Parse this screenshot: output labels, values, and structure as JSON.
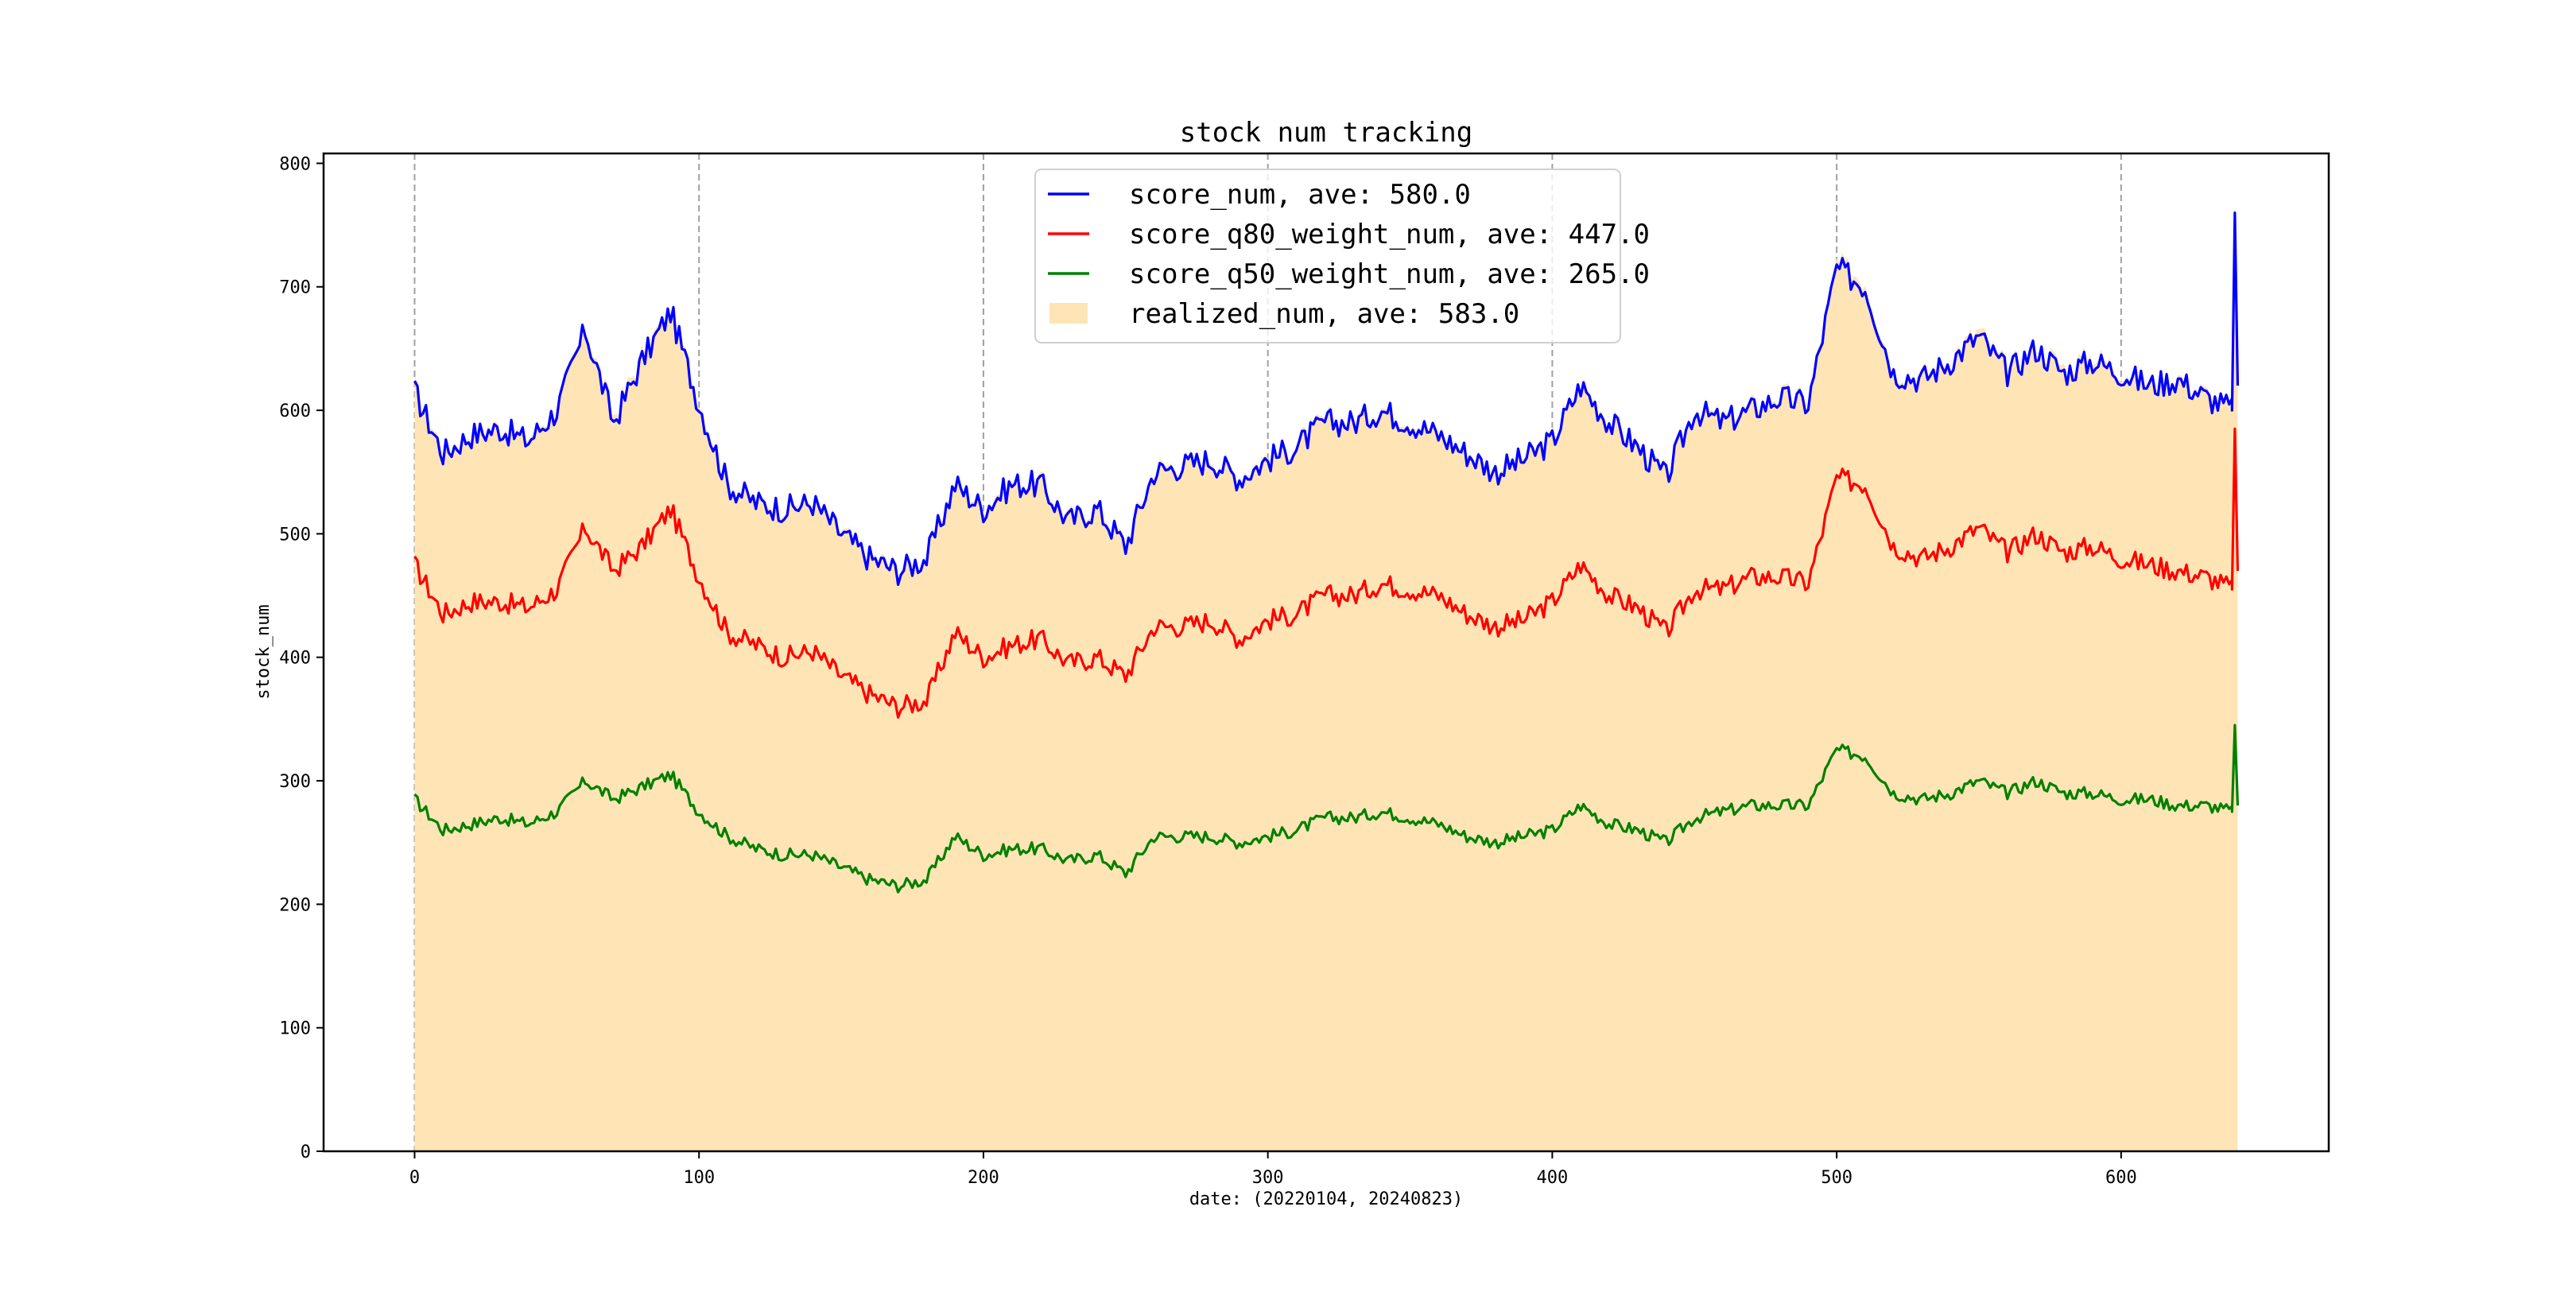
{
  "chart_data": {
    "type": "line",
    "title": "stock num tracking",
    "xlabel": "date: (20220104, 20240823)",
    "ylabel": "stock_num",
    "xlim": [
      -32,
      673
    ],
    "ylim": [
      0,
      808
    ],
    "xticks": [
      0,
      100,
      200,
      300,
      400,
      500,
      600
    ],
    "yticks": [
      0,
      100,
      200,
      300,
      400,
      500,
      600,
      700,
      800
    ],
    "grid": "x-dashed",
    "legend_position": "top-center",
    "x_step": 10,
    "x_end": 641,
    "series": [
      {
        "name": "score_num, ave: 580.0",
        "color": "#0000ff",
        "kind": "line",
        "values": [
          615,
          565,
          580,
          585,
          575,
          600,
          665,
          590,
          640,
          680,
          605,
          540,
          525,
          520,
          525,
          500,
          480,
          470,
          480,
          540,
          520,
          540,
          540,
          510,
          520,
          490,
          550,
          555,
          560,
          545,
          560,
          570,
          590,
          590,
          600,
          590,
          580,
          565,
          550,
          560,
          575,
          620,
          590,
          570,
          545,
          600,
          590,
          600,
          610,
          605,
          715,
          700,
          630,
          625,
          640,
          660,
          630,
          650,
          630,
          640,
          630,
          620,
          625,
          610,
          600
        ],
        "end_values": [
          760,
          620
        ]
      },
      {
        "name": "score_q80_weight_num, ave: 447.0",
        "color": "#ff0000",
        "kind": "line",
        "values": [
          475,
          435,
          445,
          445,
          440,
          455,
          505,
          470,
          490,
          520,
          465,
          420,
          410,
          400,
          405,
          385,
          370,
          360,
          365,
          420,
          400,
          410,
          415,
          395,
          400,
          385,
          425,
          425,
          430,
          415,
          430,
          435,
          450,
          450,
          460,
          455,
          450,
          435,
          425,
          430,
          445,
          475,
          450,
          440,
          420,
          455,
          455,
          465,
          465,
          460,
          545,
          540,
          490,
          480,
          490,
          505,
          485,
          500,
          485,
          490,
          480,
          475,
          470,
          465,
          455
        ],
        "end_values": [
          585,
          470
        ]
      },
      {
        "name": "score_q50_weight_num, ave: 265.0",
        "color": "#008000",
        "kind": "line",
        "values": [
          285,
          260,
          265,
          270,
          265,
          275,
          300,
          285,
          295,
          305,
          275,
          255,
          245,
          240,
          240,
          230,
          220,
          215,
          220,
          255,
          240,
          245,
          245,
          235,
          240,
          225,
          255,
          255,
          255,
          250,
          255,
          260,
          270,
          270,
          275,
          270,
          265,
          255,
          250,
          255,
          260,
          280,
          265,
          260,
          250,
          270,
          275,
          280,
          280,
          280,
          325,
          320,
          290,
          285,
          290,
          300,
          290,
          300,
          290,
          290,
          285,
          285,
          280,
          280,
          275
        ],
        "end_values": [
          345,
          280
        ]
      },
      {
        "name": "realized_num, ave: 583.0",
        "color": "#ffe4b5",
        "kind": "area",
        "values": [
          618,
          568,
          583,
          588,
          578,
          603,
          668,
          595,
          645,
          683,
          608,
          543,
          528,
          523,
          528,
          503,
          483,
          473,
          483,
          543,
          523,
          543,
          543,
          513,
          523,
          493,
          553,
          558,
          563,
          548,
          563,
          573,
          593,
          593,
          603,
          593,
          583,
          568,
          553,
          563,
          578,
          623,
          593,
          573,
          548,
          603,
          593,
          603,
          613,
          608,
          720,
          705,
          633,
          628,
          643,
          665,
          633,
          653,
          635,
          645,
          633,
          623,
          628,
          613,
          603
        ],
        "end_values": [
          768,
          625
        ]
      }
    ]
  }
}
